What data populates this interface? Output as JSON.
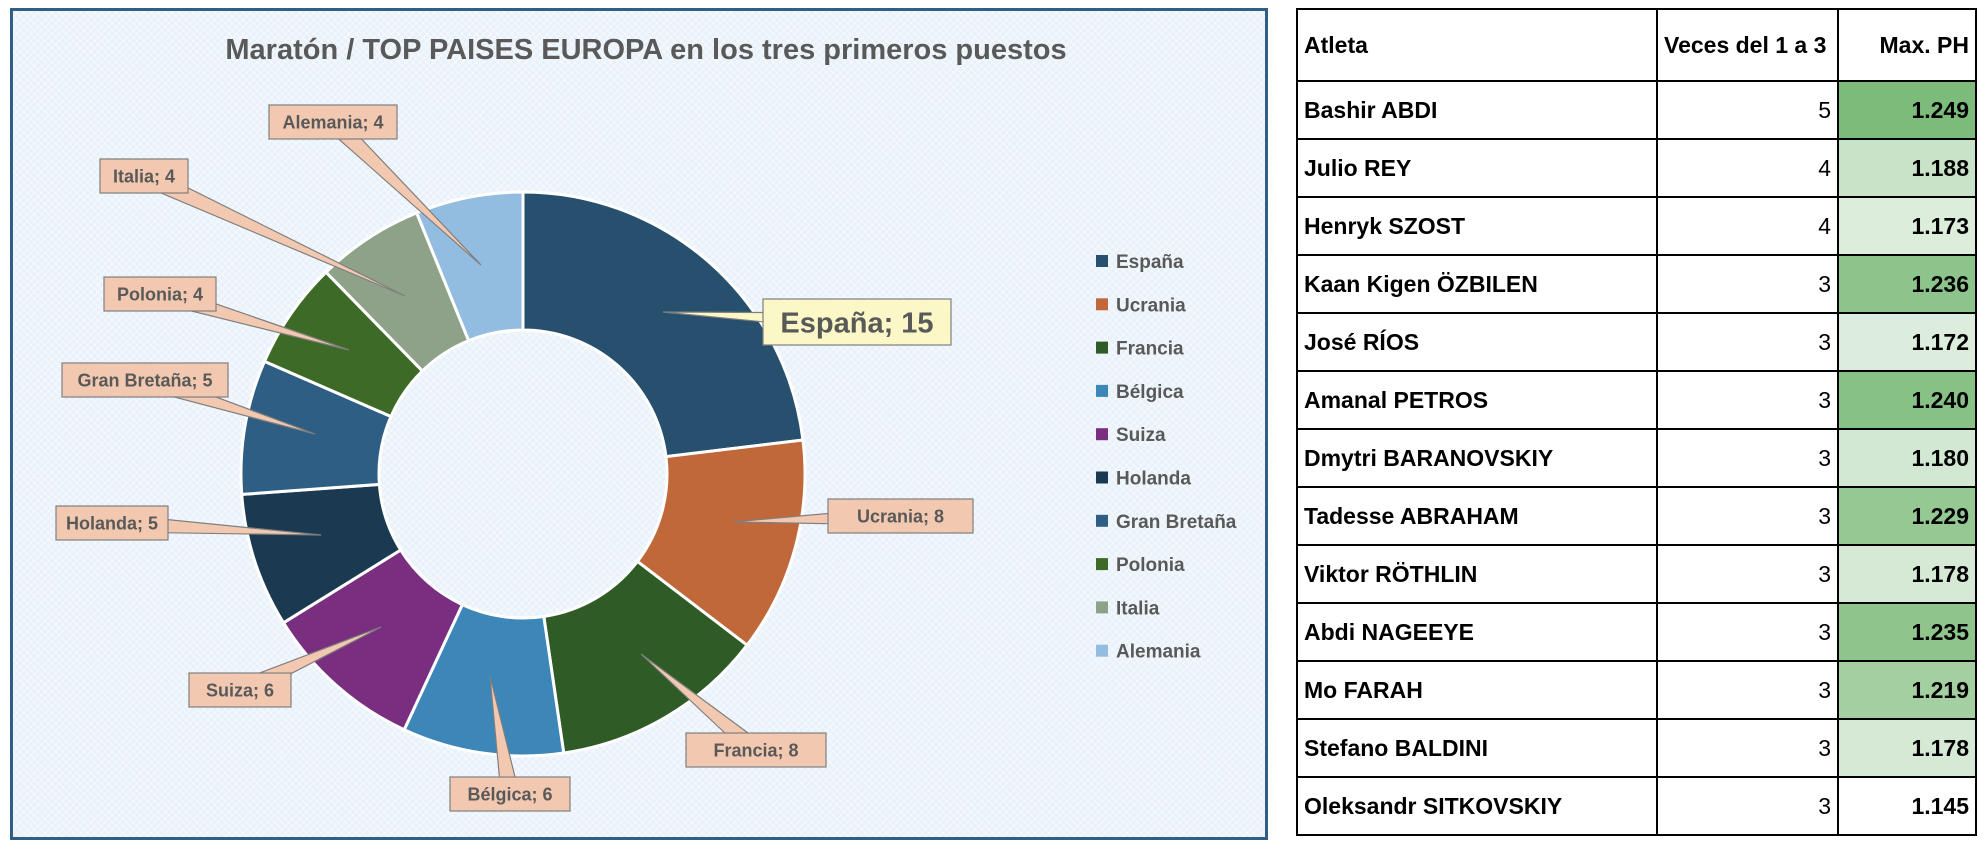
{
  "chart_data": {
    "type": "pie",
    "variant": "doughnut",
    "title": "Maratón / TOP  PAISES EUROPA en los tres primeros puestos",
    "categories": [
      "España",
      "Ucrania",
      "Francia",
      "Bélgica",
      "Suiza",
      "Holanda",
      "Gran Bretaña",
      "Polonia",
      "Italia",
      "Alemania"
    ],
    "values": [
      15,
      8,
      8,
      6,
      6,
      5,
      5,
      4,
      4,
      4
    ],
    "data_labels": [
      "España; 15",
      "Ucrania; 8",
      "Francia; 8",
      "Bélgica; 6",
      "Suiza; 6",
      "Holanda; 5",
      "Gran Bretaña; 5",
      "Polonia; 4",
      "Italia; 4",
      "Alemania; 4"
    ],
    "colors": [
      "#27506e",
      "#c0683a",
      "#2e5b26",
      "#3d86b8",
      "#7a2e80",
      "#1b3a52",
      "#2e5e83",
      "#3e6a27",
      "#8ea28a",
      "#92bde0"
    ],
    "legend_position": "right",
    "title_color": "#595959"
  },
  "table": {
    "headers": [
      "Atleta",
      "Veces del 1 a 3",
      "Max. PH"
    ],
    "rows": [
      {
        "name": "Bashir ABDI",
        "veces": "5",
        "ph": "1.249",
        "ph_value": 1.249
      },
      {
        "name": "Julio REY",
        "veces": "4",
        "ph": "1.188",
        "ph_value": 1.188
      },
      {
        "name": "Henryk SZOST",
        "veces": "4",
        "ph": "1.173",
        "ph_value": 1.173
      },
      {
        "name": "Kaan Kigen ÖZBILEN",
        "veces": "3",
        "ph": "1.236",
        "ph_value": 1.236
      },
      {
        "name": "José RÍOS",
        "veces": "3",
        "ph": "1.172",
        "ph_value": 1.172
      },
      {
        "name": "Amanal PETROS",
        "veces": "3",
        "ph": "1.240",
        "ph_value": 1.24
      },
      {
        "name": "Dmytri BARANOVSKIY",
        "veces": "3",
        "ph": "1.180",
        "ph_value": 1.18
      },
      {
        "name": "Tadesse ABRAHAM",
        "veces": "3",
        "ph": "1.229",
        "ph_value": 1.229
      },
      {
        "name": "Viktor RÖTHLIN",
        "veces": "3",
        "ph": "1.178",
        "ph_value": 1.178
      },
      {
        "name": "Abdi NAGEEYE",
        "veces": "3",
        "ph": "1.235",
        "ph_value": 1.235
      },
      {
        "name": "Mo FARAH",
        "veces": "3",
        "ph": "1.219",
        "ph_value": 1.219
      },
      {
        "name": "Stefano BALDINI",
        "veces": "3",
        "ph": "1.178",
        "ph_value": 1.178
      },
      {
        "name": "Oleksandr SITKOVSKIY",
        "veces": "3",
        "ph": "1.145",
        "ph_value": 1.145
      }
    ],
    "heat_colors": {
      "high": "#7dbb7b",
      "low": "#ffffff"
    }
  }
}
